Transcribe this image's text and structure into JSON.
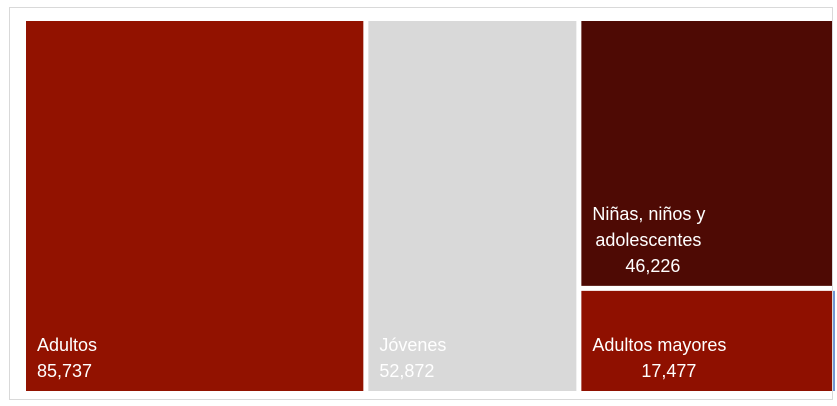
{
  "chart_data": {
    "type": "treemap",
    "items": [
      {
        "name": "Adultos",
        "value": 85737,
        "value_label": "85,737",
        "label_lines": [
          "Adultos"
        ],
        "color": "#921200",
        "text_color": "#ffffff"
      },
      {
        "name": "Jóvenes",
        "value": 52872,
        "value_label": "52,872",
        "label_lines": [
          "Jóvenes"
        ],
        "color": "#d9d9d9",
        "text_color": "#ffffff"
      },
      {
        "name": "Niñas, niños y adolescentes",
        "value": 46226,
        "value_label": "46,226",
        "label_lines": [
          "Niñas, niños y",
          "adolescentes"
        ],
        "color": "#4e0a04",
        "text_color": "#ffffff"
      },
      {
        "name": "Adultos mayores",
        "value": 17477,
        "value_label": "17,477",
        "label_lines": [
          "Adultos mayores"
        ],
        "color": "#8f1000",
        "text_color": "#ffffff"
      }
    ],
    "accent_line_color": "#4472c4"
  }
}
